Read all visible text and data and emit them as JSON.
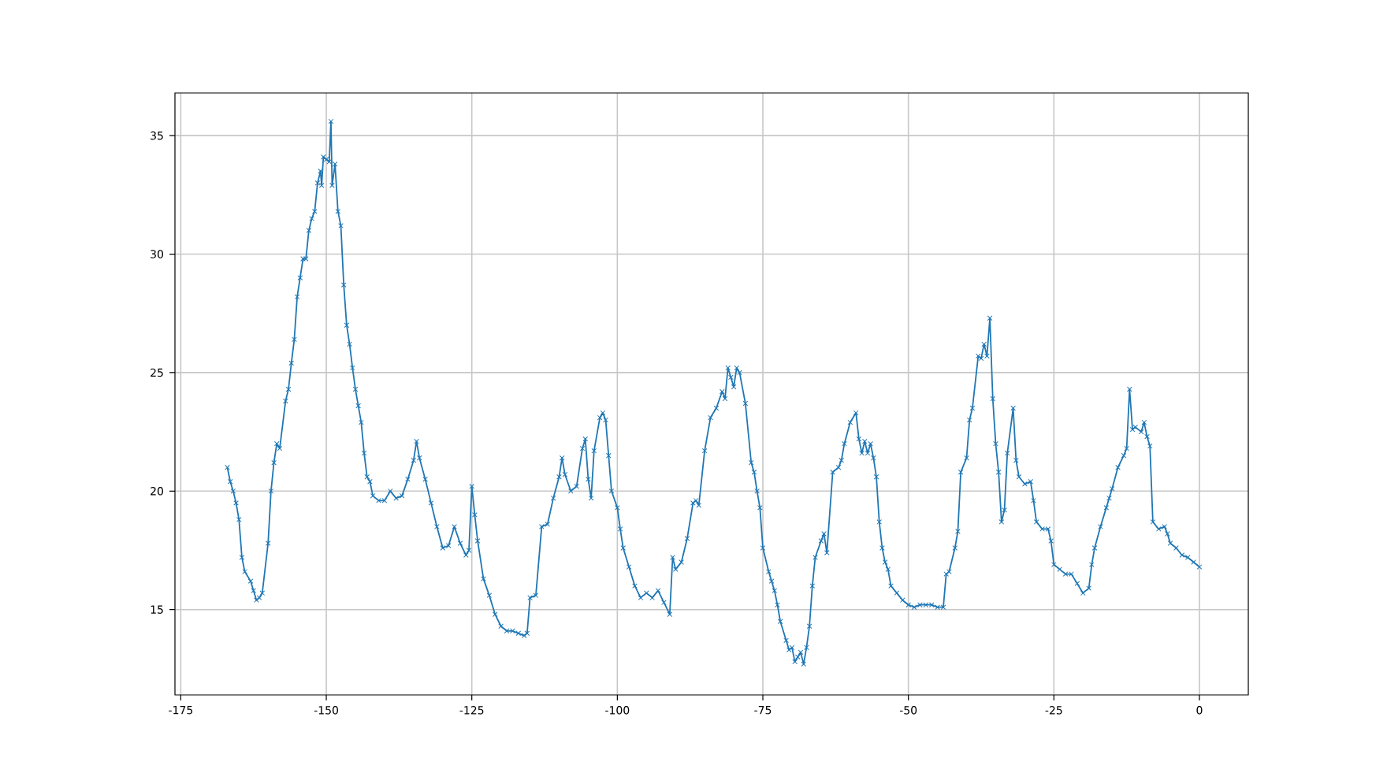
{
  "chart_data": {
    "type": "line",
    "color": "#1f77b4",
    "marker": "cross",
    "line_style": "solid",
    "grid": true,
    "xlim": [
      -176,
      8.4
    ],
    "ylim": [
      11.4,
      36.8
    ],
    "xticks": [
      -175,
      -150,
      -125,
      -100,
      -75,
      -50,
      -25,
      0
    ],
    "yticks": [
      15,
      20,
      25,
      30,
      35
    ],
    "x": [
      -167,
      -166.5,
      -166,
      -165.5,
      -165,
      -164.5,
      -164,
      -163,
      -162.5,
      -162,
      -161.5,
      -161,
      -160,
      -159.5,
      -159,
      -158.5,
      -158,
      -157,
      -156.5,
      -156,
      -155.5,
      -155,
      -154.5,
      -154,
      -153.5,
      -153,
      -152.5,
      -152,
      -151.5,
      -151,
      -150.8,
      -150.5,
      -150,
      -149.5,
      -149.2,
      -149,
      -148.5,
      -148,
      -147.5,
      -147,
      -146.5,
      -146,
      -145.5,
      -145,
      -144.5,
      -144,
      -143.5,
      -143,
      -142.5,
      -142,
      -141,
      -140,
      -139,
      -138,
      -137,
      -136,
      -135,
      -134.5,
      -134,
      -133,
      -132,
      -131,
      -130,
      -129,
      -128,
      -127,
      -126,
      -125.5,
      -125,
      -124.5,
      -124,
      -123,
      -122,
      -121,
      -120,
      -119,
      -118,
      -117,
      -116,
      -115.5,
      -115,
      -114,
      -113,
      -112,
      -111,
      -110,
      -109.5,
      -109,
      -108,
      -107,
      -106,
      -105.5,
      -105,
      -104.5,
      -104,
      -103,
      -102.5,
      -102,
      -101.5,
      -101,
      -100,
      -99.5,
      -99,
      -98,
      -97,
      -96,
      -95,
      -94,
      -93,
      -92,
      -91,
      -90.5,
      -90,
      -89,
      -88,
      -87,
      -86.5,
      -86,
      -85,
      -84,
      -83,
      -82,
      -81.5,
      -81,
      -80.5,
      -80,
      -79.5,
      -79,
      -78,
      -77,
      -76.5,
      -76,
      -75.5,
      -75,
      -74,
      -73.5,
      -73,
      -72.5,
      -72,
      -71,
      -70.5,
      -70,
      -69.5,
      -69,
      -68.5,
      -68,
      -67.5,
      -67,
      -66.5,
      -66,
      -65,
      -64.5,
      -64,
      -63,
      -62,
      -61.5,
      -61,
      -60,
      -59,
      -58.5,
      -58,
      -57.5,
      -57,
      -56.5,
      -56,
      -55.5,
      -55,
      -54.5,
      -54,
      -53.5,
      -53,
      -52,
      -51,
      -50,
      -49,
      -48,
      -47,
      -46,
      -45,
      -44,
      -43.5,
      -43,
      -42,
      -41.5,
      -41,
      -40,
      -39.5,
      -39,
      -38,
      -37.5,
      -37,
      -36.5,
      -36,
      -35.5,
      -35,
      -34.5,
      -34,
      -33.5,
      -33,
      -32,
      -31.5,
      -31,
      -30,
      -29,
      -28.5,
      -28,
      -27,
      -26,
      -25.5,
      -25,
      -24,
      -23,
      -22,
      -21,
      -20,
      -19,
      -18.5,
      -18,
      -17,
      -16,
      -15.5,
      -15,
      -14,
      -13,
      -12.5,
      -12,
      -11.5,
      -11,
      -10,
      -9.5,
      -9,
      -8.5,
      -8,
      -7,
      -6,
      -5.5,
      -5,
      -4,
      -3,
      -2,
      -1,
      0
    ],
    "values": [
      21.0,
      20.4,
      20.0,
      19.5,
      18.8,
      17.2,
      16.6,
      16.2,
      15.8,
      15.4,
      15.5,
      15.7,
      17.8,
      20.0,
      21.2,
      22.0,
      21.8,
      23.8,
      24.3,
      25.4,
      26.4,
      28.2,
      29.0,
      29.8,
      29.8,
      31.0,
      31.5,
      31.8,
      33.0,
      33.5,
      32.9,
      34.1,
      34.0,
      33.9,
      35.6,
      32.9,
      33.8,
      31.8,
      31.2,
      28.7,
      27.0,
      26.2,
      25.2,
      24.3,
      23.6,
      22.9,
      21.6,
      20.6,
      20.4,
      19.8,
      19.6,
      19.6,
      20.0,
      19.7,
      19.8,
      20.5,
      21.3,
      22.1,
      21.4,
      20.5,
      19.5,
      18.5,
      17.6,
      17.7,
      18.5,
      17.8,
      17.3,
      17.5,
      20.2,
      19.0,
      17.9,
      16.3,
      15.6,
      14.8,
      14.3,
      14.1,
      14.1,
      14.0,
      13.9,
      14.0,
      15.5,
      15.6,
      18.5,
      18.6,
      19.7,
      20.6,
      21.4,
      20.7,
      20.0,
      20.2,
      21.8,
      22.2,
      20.5,
      19.7,
      21.7,
      23.1,
      23.3,
      23.0,
      21.5,
      20.0,
      19.3,
      18.4,
      17.6,
      16.8,
      16.0,
      15.5,
      15.7,
      15.5,
      15.8,
      15.3,
      14.8,
      17.2,
      16.7,
      17.0,
      18.0,
      19.5,
      19.6,
      19.4,
      21.7,
      23.1,
      23.5,
      24.2,
      23.9,
      25.2,
      24.8,
      24.4,
      25.2,
      25.0,
      23.7,
      21.2,
      20.8,
      20.0,
      19.3,
      17.6,
      16.6,
      16.2,
      15.8,
      15.2,
      14.5,
      13.7,
      13.3,
      13.4,
      12.8,
      13.0,
      13.2,
      12.7,
      13.4,
      14.3,
      16.0,
      17.2,
      17.9,
      18.2,
      17.4,
      20.8,
      21.0,
      21.3,
      22.0,
      22.9,
      23.3,
      22.2,
      21.6,
      22.1,
      21.6,
      22.0,
      21.4,
      20.6,
      18.7,
      17.6,
      17.0,
      16.7,
      16.0,
      15.7,
      15.4,
      15.2,
      15.1,
      15.2,
      15.2,
      15.2,
      15.1,
      15.1,
      16.5,
      16.6,
      17.6,
      18.3,
      20.8,
      21.4,
      23.0,
      23.5,
      25.7,
      25.6,
      26.2,
      25.7,
      27.3,
      23.9,
      22.0,
      20.8,
      18.7,
      19.2,
      21.6,
      23.5,
      21.3,
      20.6,
      20.3,
      20.4,
      19.6,
      18.7,
      18.4,
      18.4,
      17.9,
      16.9,
      16.7,
      16.5,
      16.5,
      16.1,
      15.7,
      15.9,
      16.9,
      17.6,
      18.5,
      19.3,
      19.7,
      20.1,
      21.0,
      21.5,
      21.8,
      24.3,
      22.6,
      22.7,
      22.5,
      22.9,
      22.3,
      21.9,
      18.7,
      18.4,
      18.5,
      18.2,
      17.8,
      17.6,
      17.3,
      17.2,
      17.0,
      16.8
    ]
  }
}
